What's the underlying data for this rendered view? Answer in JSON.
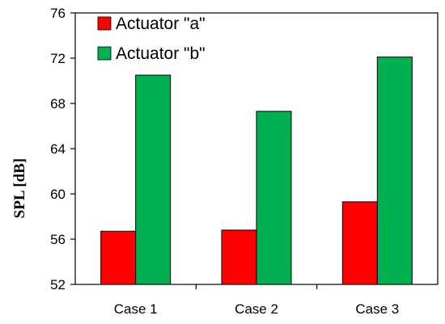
{
  "chart_data": {
    "type": "bar",
    "title": "",
    "xlabel": "",
    "ylabel": "SPL [dB]",
    "ylim": [
      52,
      76
    ],
    "yticks": [
      52,
      56,
      60,
      64,
      68,
      72,
      76
    ],
    "categories": [
      "Case 1",
      "Case 2",
      "Case 3"
    ],
    "series": [
      {
        "name": "Actuator \"a\"",
        "color": "#ff0000",
        "values": [
          56.7,
          56.8,
          59.3
        ]
      },
      {
        "name": "Actuator \"b\"",
        "color": "#00b050",
        "values": [
          70.5,
          67.3,
          72.1
        ]
      }
    ],
    "grid": false,
    "legend": "top-left"
  }
}
